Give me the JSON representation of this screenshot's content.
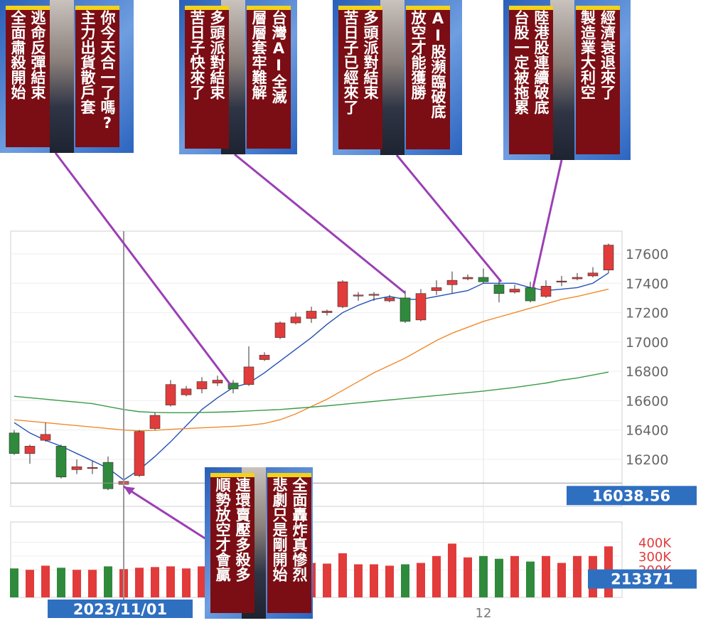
{
  "chart_data": {
    "type": "candlestick",
    "categories": [
      null,
      null,
      null,
      null,
      null,
      null,
      null,
      null,
      null,
      null,
      null,
      null,
      null,
      null,
      null,
      null,
      null,
      null,
      null,
      null,
      null,
      null,
      null,
      null,
      null,
      null,
      null,
      null,
      null,
      null,
      "12",
      null,
      null,
      null,
      null,
      null,
      null,
      null,
      null
    ],
    "open": [
      16380,
      16240,
      16330,
      16290,
      16130,
      16140,
      16180,
      16030,
      16090,
      16410,
      16570,
      16640,
      16680,
      16720,
      16720,
      16710,
      16880,
      17030,
      17130,
      17160,
      17200,
      17240,
      17320,
      17320,
      17280,
      17300,
      17150,
      17350,
      17390,
      17430,
      17440,
      17390,
      17340,
      17370,
      17310,
      17410,
      17430,
      17450,
      17490
    ],
    "close": [
      16240,
      16290,
      16370,
      16080,
      16150,
      16145,
      16000,
      16050,
      16390,
      16500,
      16710,
      16680,
      16730,
      16740,
      16680,
      16830,
      16910,
      17130,
      17170,
      17210,
      17210,
      17410,
      17320,
      17325,
      17300,
      17140,
      17330,
      17370,
      17420,
      17440,
      17410,
      17330,
      17360,
      17280,
      17380,
      17415,
      17440,
      17470,
      17660
    ],
    "high": [
      16400,
      16300,
      16450,
      16300,
      16200,
      16190,
      16220,
      16070,
      16400,
      16520,
      16740,
      16700,
      16760,
      16770,
      16740,
      16970,
      16930,
      17140,
      17200,
      17240,
      17220,
      17420,
      17340,
      17340,
      17320,
      17350,
      17360,
      17420,
      17480,
      17460,
      17500,
      17420,
      17390,
      17410,
      17420,
      17450,
      17470,
      17510,
      17670
    ],
    "low": [
      16230,
      16170,
      16320,
      16070,
      16100,
      16100,
      15990,
      15924,
      16080,
      16400,
      16560,
      16630,
      16650,
      16700,
      16650,
      16700,
      16870,
      17020,
      17120,
      17130,
      17180,
      17230,
      17280,
      17280,
      17270,
      17130,
      17140,
      17320,
      17330,
      17420,
      17400,
      17270,
      17330,
      17270,
      17300,
      17380,
      17420,
      17440,
      17470
    ],
    "up_color": "#e23b3b",
    "down_color": "#2f8a3c",
    "ylim": [
      15880,
      17755
    ],
    "yticks": [
      16200,
      16400,
      16600,
      16800,
      17000,
      17200,
      17400,
      17600
    ],
    "moving_averages": [
      {
        "color": "#2251b5",
        "values": [
          16450,
          16380,
          16330,
          16290,
          16240,
          16190,
          16140,
          16060,
          16130,
          16220,
          16320,
          16430,
          16540,
          16620,
          16690,
          16720,
          16790,
          16870,
          16950,
          17030,
          17120,
          17200,
          17250,
          17290,
          17310,
          17290,
          17290,
          17310,
          17330,
          17350,
          17400,
          17400,
          17400,
          17370,
          17350,
          17360,
          17370,
          17400,
          17470
        ]
      },
      {
        "color": "#f08a2c",
        "values": [
          16470,
          16460,
          16450,
          16440,
          16430,
          16420,
          16410,
          16400,
          16395,
          16398,
          16405,
          16410,
          16415,
          16420,
          16425,
          16432,
          16445,
          16470,
          16510,
          16560,
          16610,
          16670,
          16730,
          16790,
          16840,
          16890,
          16950,
          17010,
          17060,
          17100,
          17140,
          17170,
          17200,
          17230,
          17260,
          17290,
          17310,
          17335,
          17360
        ]
      },
      {
        "color": "#3a9a48",
        "values": [
          16630,
          16620,
          16610,
          16600,
          16590,
          16580,
          16560,
          16540,
          16525,
          16520,
          16518,
          16518,
          16520,
          16522,
          16525,
          16530,
          16535,
          16540,
          16548,
          16556,
          16565,
          16575,
          16585,
          16595,
          16605,
          16615,
          16625,
          16635,
          16645,
          16655,
          16665,
          16678,
          16690,
          16705,
          16720,
          16740,
          16755,
          16775,
          16795
        ]
      }
    ],
    "volume": {
      "values": [
        210000,
        200000,
        230000,
        215000,
        200000,
        200000,
        225000,
        205000,
        215000,
        220000,
        225000,
        210000,
        225000,
        235000,
        210000,
        230000,
        250000,
        220000,
        240000,
        250000,
        245000,
        320000,
        240000,
        240000,
        230000,
        240000,
        250000,
        300000,
        390000,
        290000,
        300000,
        280000,
        300000,
        260000,
        300000,
        250000,
        300000,
        300000,
        370000
      ],
      "ylim": [
        0,
        526000
      ],
      "yticks": [
        {
          "value": 400000,
          "label": "400K"
        },
        {
          "value": 300000,
          "label": "300K"
        },
        {
          "value": 200000,
          "label": "200K"
        }
      ]
    },
    "crosshair": {
      "date": "2023/11/01",
      "price": 16038.56,
      "volume": 213371
    }
  },
  "annotations": [
    {
      "captions": [
        [
          "逃命反彈結束",
          "全面肅殺開始"
        ],
        [
          "你今天合一了嗎?",
          "主力出貨散戶套"
        ]
      ]
    },
    {
      "captions": [
        [
          "多頭派對結束",
          "苦日子快來了"
        ],
        [
          "台灣AI全滅",
          "層層套牢難解"
        ]
      ]
    },
    {
      "captions": [
        [
          "多頭派對結束",
          "苦日子已經來了"
        ],
        [
          "AI股瀕臨破底",
          "放空才能獲勝"
        ]
      ]
    },
    {
      "captions": [
        [
          "陸港股連續破底",
          "台股一定被拖累"
        ],
        [
          "經濟衰退來了",
          "製造業大利空"
        ]
      ]
    },
    {
      "captions": [
        [
          "連環賣壓多殺多",
          "順勢放空才會贏"
        ],
        [
          "全面轟炸真慘烈",
          "悲劇只是剛開始"
        ]
      ]
    }
  ]
}
